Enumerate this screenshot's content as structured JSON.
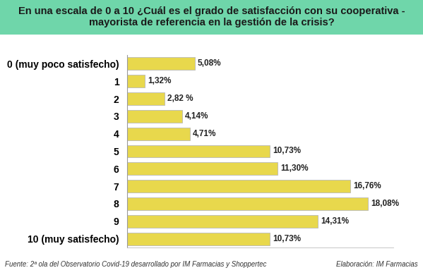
{
  "chart_data": {
    "type": "bar",
    "orientation": "horizontal",
    "title": "En una escala de 0 a 10 ¿Cuál es el grado de satisfacción con su cooperativa - mayorista de referencia en la gestión de la crisis?",
    "categories": [
      "0 (muy poco satisfecho)",
      "1",
      "2",
      "3",
      "4",
      "5",
      "6",
      "7",
      "8",
      "9",
      "10 (muy satisfecho)"
    ],
    "values": [
      5.08,
      1.32,
      2.82,
      4.14,
      4.71,
      10.73,
      11.3,
      16.76,
      18.08,
      14.31,
      10.73
    ],
    "value_labels": [
      "5,08%",
      "1,32%",
      "2,82 %",
      "4,14%",
      "4,71%",
      "10,73%",
      "11,30%",
      "16,76%",
      "18,08%",
      "14,31%",
      "10,73%"
    ],
    "data_labels": true,
    "color": "#e8d84c",
    "xlim": [
      0,
      20
    ],
    "tick_labels": "y",
    "grid": false,
    "annotations": [
      "Fuente: 2ª ola del Observatorio Covid-19 desarrollado por IM Farmacias y Shoppertec",
      "Elaboración: IM Farmacias"
    ]
  }
}
